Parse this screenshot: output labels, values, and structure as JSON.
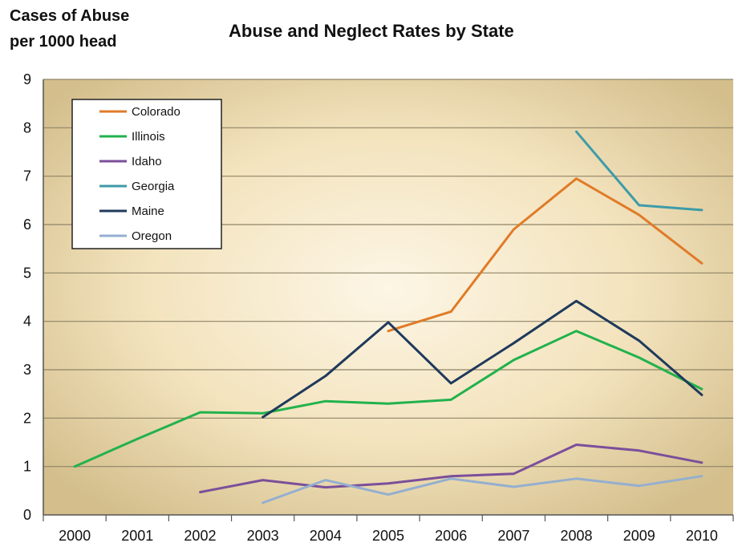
{
  "chart_data": {
    "type": "line",
    "title": "Abuse and Neglect Rates by State",
    "ylabel": [
      "Cases of Abuse",
      "per 1000 head"
    ],
    "xlabel": "",
    "x": [
      "2000",
      "2001",
      "2002",
      "2003",
      "2004",
      "2005",
      "2006",
      "2007",
      "2008",
      "2009",
      "2010"
    ],
    "ylim": [
      0,
      9
    ],
    "yticks": [
      "0",
      "1",
      "2",
      "3",
      "4",
      "5",
      "6",
      "7",
      "8",
      "9"
    ],
    "grid": true,
    "legend_position": "top-left",
    "series": [
      {
        "name": "Colorado",
        "color": "#E07B28",
        "values": [
          null,
          null,
          null,
          null,
          null,
          3.8,
          4.2,
          5.9,
          6.95,
          6.2,
          5.2
        ]
      },
      {
        "name": "Illinois",
        "color": "#22B24C",
        "values": [
          1.0,
          1.57,
          2.12,
          2.1,
          2.35,
          2.3,
          2.38,
          3.2,
          3.8,
          3.25,
          2.6
        ]
      },
      {
        "name": "Idaho",
        "color": "#7B4F9A",
        "values": [
          null,
          null,
          0.47,
          0.72,
          0.57,
          0.65,
          0.8,
          0.85,
          1.45,
          1.33,
          1.08
        ]
      },
      {
        "name": "Georgia",
        "color": "#3E9BA8",
        "values": [
          null,
          null,
          null,
          null,
          null,
          null,
          null,
          null,
          7.92,
          6.4,
          6.3
        ]
      },
      {
        "name": "Maine",
        "color": "#1F3A5C",
        "values": [
          null,
          null,
          null,
          2.02,
          2.87,
          3.98,
          2.72,
          3.55,
          4.42,
          3.6,
          2.48
        ]
      },
      {
        "name": "Oregon",
        "color": "#94AFCF",
        "values": [
          null,
          null,
          null,
          0.25,
          0.72,
          0.42,
          0.75,
          0.58,
          0.75,
          0.6,
          0.8
        ]
      }
    ]
  }
}
